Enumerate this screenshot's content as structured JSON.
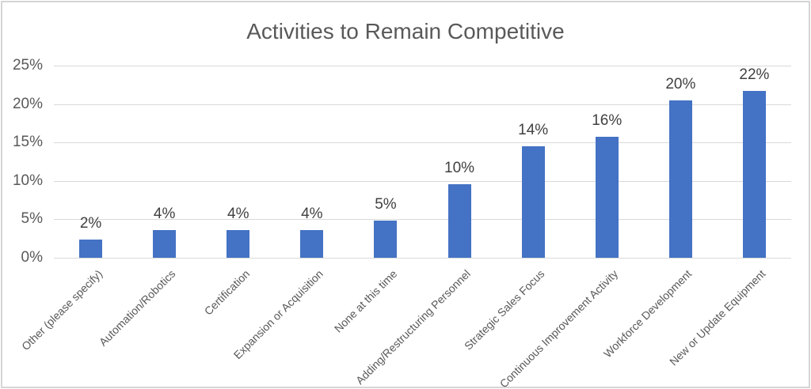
{
  "chart_data": {
    "type": "bar",
    "title": "Activities to Remain Competitive",
    "categories": [
      "Other (please specify)",
      "Automation/Robotics",
      "Certification",
      "Expansion or Acquisition",
      "None at this time",
      "Adding/Restructuring Personnel",
      "Strategic Sales Focus",
      "Continuous Improvement Activity",
      "Workforce Development",
      "New or Update Equipment"
    ],
    "values": [
      2,
      4,
      4,
      4,
      5,
      10,
      14,
      16,
      20,
      22
    ],
    "value_labels": [
      "2%",
      "4%",
      "4%",
      "4%",
      "5%",
      "10%",
      "14%",
      "16%",
      "20%",
      "22%"
    ],
    "bar_heights_pct": [
      2.4,
      3.6,
      3.6,
      3.6,
      4.8,
      9.6,
      14.5,
      15.7,
      20.5,
      21.7
    ],
    "xlabel": "",
    "ylabel": "",
    "ylim": [
      0,
      25
    ],
    "y_ticks": [
      {
        "value": 25,
        "label": "25%"
      },
      {
        "value": 20,
        "label": "20%"
      },
      {
        "value": 15,
        "label": "15%"
      },
      {
        "value": 10,
        "label": "10%"
      },
      {
        "value": 5,
        "label": "5%"
      },
      {
        "value": 0,
        "label": "0%"
      }
    ],
    "grid": true,
    "legend": "none",
    "bar_color": "#4472C4",
    "gridline_color": "#D9D9D9",
    "axis_text_color": "#595959",
    "data_label_color": "#404040",
    "title_color": "#595959"
  }
}
